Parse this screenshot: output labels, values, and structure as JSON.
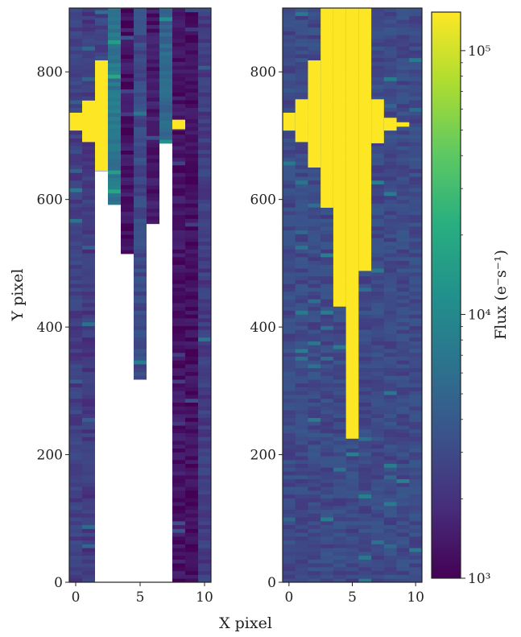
{
  "chart_data": {
    "type": "heatmap",
    "xlabel": "X pixel",
    "ylabel": "Y pixel",
    "colorbar_label": "Flux (e⁻s⁻¹)",
    "colorbar": {
      "scale": "log",
      "min": 1000,
      "max": 140000,
      "ticks": [
        "10³",
        "10⁴",
        "10⁵"
      ],
      "tick_values": [
        1000,
        10000,
        100000
      ]
    },
    "colormap": [
      "#440154",
      "#472d7b",
      "#3b528b",
      "#2c728e",
      "#21918c",
      "#28ae80",
      "#5ec962",
      "#addc30",
      "#fde725"
    ],
    "panels": [
      {
        "id": "left",
        "xlim": [
          -0.5,
          10.5
        ],
        "ylim": [
          0,
          900
        ],
        "x_ticks": [
          0,
          5,
          10
        ],
        "y_ticks": [
          0,
          200,
          400,
          600,
          800
        ],
        "saturation_level": "1.4e5",
        "masked_color": "#ffffff",
        "columns": [
          {
            "x": 0,
            "base": 2500,
            "saturated": [
              [
                708,
                736
              ]
            ]
          },
          {
            "x": 1,
            "base": 2300,
            "saturated": [
              [
                690,
                755
              ]
            ],
            "valid_above": 0
          },
          {
            "x": 2,
            "base": 2600,
            "saturated": [
              [
                645,
                818
              ]
            ],
            "valid_above": 645
          },
          {
            "x": 3,
            "base": 7000,
            "saturated": [],
            "valid_above": 592
          },
          {
            "x": 4,
            "base": 1300,
            "saturated": [],
            "valid_above": 515
          },
          {
            "x": 5,
            "base": 3000,
            "saturated": [],
            "valid_above": 318
          },
          {
            "x": 6,
            "base": 1400,
            "saturated": [],
            "valid_above": 562
          },
          {
            "x": 7,
            "base": 5000,
            "saturated": [],
            "valid_above": 688
          },
          {
            "x": 8,
            "base": 1300,
            "saturated": [
              [
                710,
                725
              ]
            ]
          },
          {
            "x": 9,
            "base": 1200,
            "saturated": []
          },
          {
            "x": 10,
            "base": 2400,
            "saturated": []
          }
        ]
      },
      {
        "id": "right",
        "xlim": [
          -0.5,
          10.5
        ],
        "ylim": [
          0,
          900
        ],
        "x_ticks": [
          0,
          5,
          10
        ],
        "y_ticks": [
          0,
          200,
          400,
          600,
          800
        ],
        "background": 3000,
        "saturation_level": "1.4e5",
        "bleed_columns": [
          {
            "x": 0,
            "saturated": [
              [
                708,
                736
              ]
            ]
          },
          {
            "x": 1,
            "saturated": [
              [
                690,
                757
              ]
            ]
          },
          {
            "x": 2,
            "saturated": [
              [
                650,
                818
              ]
            ]
          },
          {
            "x": 3,
            "saturated": [
              [
                587,
                900
              ]
            ]
          },
          {
            "x": 4,
            "saturated": [
              [
                432,
                900
              ]
            ]
          },
          {
            "x": 5,
            "saturated": [
              [
                225,
                900
              ]
            ]
          },
          {
            "x": 6,
            "saturated": [
              [
                488,
                900
              ]
            ]
          },
          {
            "x": 7,
            "saturated": [
              [
                688,
                757
              ]
            ]
          },
          {
            "x": 8,
            "saturated": [
              [
                708,
                728
              ]
            ]
          },
          {
            "x": 9,
            "saturated": [
              [
                714,
                721
              ]
            ]
          }
        ]
      }
    ]
  }
}
